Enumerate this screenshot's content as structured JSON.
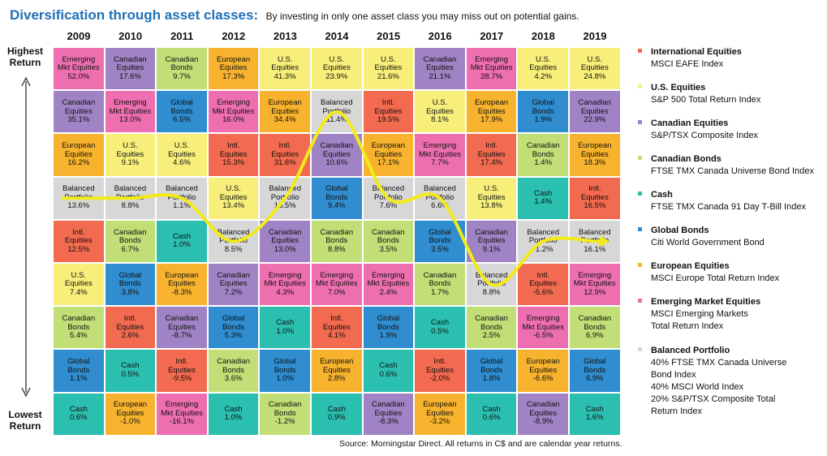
{
  "title": "Diversification through asset classes:",
  "subtitle": "By investing in only one asset class you may miss out on potential gains.",
  "y_top_label": [
    "Highest",
    "Return"
  ],
  "y_bottom_label": [
    "Lowest",
    "Return"
  ],
  "source": "Source: Morningstar Direct. All returns in C$ and are calendar year returns.",
  "colors": {
    "intl": "#f26a4f",
    "us": "#f7ef7a",
    "cdn_eq": "#9f83c4",
    "cdn_bonds": "#c2de76",
    "cash": "#2bbfb0",
    "global": "#2f8dd0",
    "eur": "#f7b32d",
    "em": "#ee6fb0",
    "bal": "#d7d7d7",
    "line": "#f3ea19"
  },
  "legend": [
    {
      "key": "intl",
      "name": "International Equities",
      "lines": [
        "MSCI EAFE Index"
      ]
    },
    {
      "key": "us",
      "name": "U.S. Equities",
      "lines": [
        "S&P 500 Total Return Index"
      ]
    },
    {
      "key": "cdn_eq",
      "name": "Canadian Equities",
      "lines": [
        "S&P/TSX Composite Index"
      ]
    },
    {
      "key": "cdn_bonds",
      "name": "Canadian Bonds",
      "lines": [
        "FTSE TMX Canada Universe Bond Index"
      ]
    },
    {
      "key": "cash",
      "name": "Cash",
      "lines": [
        "FTSE TMX Canada 91 Day T-Bill Index"
      ]
    },
    {
      "key": "global",
      "name": "Global Bonds",
      "lines": [
        "Citi World Government Bond"
      ]
    },
    {
      "key": "eur",
      "name": "European Equities",
      "lines": [
        "MSCI Europe Total Return Index"
      ]
    },
    {
      "key": "em",
      "name": "Emerging Market Equities",
      "lines": [
        "MSCI Emerging Markets",
        "Total Return Index"
      ]
    },
    {
      "key": "bal",
      "name": "Balanced Portfolio",
      "lines": [
        "40% FTSE TMX Canada Universe",
        "Bond Index",
        "40% MSCI World Index",
        "20% S&P/TSX Composite Total",
        "Return Index"
      ]
    }
  ],
  "chart_data": {
    "type": "table",
    "title": "Diversification through asset classes:",
    "years": [
      "2009",
      "2010",
      "2011",
      "2012",
      "2013",
      "2014",
      "2015",
      "2016",
      "2017",
      "2018",
      "2019"
    ],
    "cell_names": {
      "intl": [
        "Intl.",
        "Equities"
      ],
      "us": [
        "U.S.",
        "Equities"
      ],
      "cdn_eq": [
        "Canadian",
        "Equities"
      ],
      "cdn_bonds": [
        "Canadian",
        "Bonds"
      ],
      "cash": [
        "Cash"
      ],
      "global": [
        "Global",
        "Bonds"
      ],
      "eur": [
        "European",
        "Equities"
      ],
      "em": [
        "Emerging",
        "Mkt Equities"
      ],
      "bal": [
        "Balanced",
        "Portfolio"
      ]
    },
    "highlight_series": "bal",
    "columns": [
      [
        [
          "em",
          "52.0%"
        ],
        [
          "cdn_eq",
          "35.1%"
        ],
        [
          "eur",
          "16.2%"
        ],
        [
          "bal",
          "13.6%"
        ],
        [
          "intl",
          "12.5%"
        ],
        [
          "us",
          "7.4%"
        ],
        [
          "cdn_bonds",
          "5.4%"
        ],
        [
          "global",
          "1.1%"
        ],
        [
          "cash",
          "0.6%"
        ]
      ],
      [
        [
          "cdn_eq",
          "17.6%"
        ],
        [
          "em",
          "13.0%"
        ],
        [
          "us",
          "9.1%"
        ],
        [
          "bal",
          "8.8%"
        ],
        [
          "cdn_bonds",
          "6.7%"
        ],
        [
          "global",
          "3.8%"
        ],
        [
          "intl",
          "2.6%"
        ],
        [
          "cash",
          "0.5%"
        ],
        [
          "eur",
          "-1.0%"
        ]
      ],
      [
        [
          "cdn_bonds",
          "9.7%"
        ],
        [
          "global",
          "6.5%"
        ],
        [
          "us",
          "4.6%"
        ],
        [
          "bal",
          "1.1%"
        ],
        [
          "cash",
          "1.0%"
        ],
        [
          "eur",
          "-8.3%"
        ],
        [
          "cdn_eq",
          "-8.7%"
        ],
        [
          "intl",
          "-9.5%"
        ],
        [
          "em",
          "-16.1%"
        ]
      ],
      [
        [
          "eur",
          "17.3%"
        ],
        [
          "em",
          "16.0%"
        ],
        [
          "intl",
          "15.3%"
        ],
        [
          "us",
          "13.4%"
        ],
        [
          "bal",
          "8.5%"
        ],
        [
          "cdn_eq",
          "7.2%"
        ],
        [
          "global",
          "5.3%"
        ],
        [
          "cdn_bonds",
          "3.6%"
        ],
        [
          "cash",
          "1.0%"
        ]
      ],
      [
        [
          "us",
          "41.3%"
        ],
        [
          "eur",
          "34.4%"
        ],
        [
          "intl",
          "31.6%"
        ],
        [
          "bal",
          "16.5%"
        ],
        [
          "cdn_eq",
          "13.0%"
        ],
        [
          "em",
          "4.3%"
        ],
        [
          "cash",
          "1.0%"
        ],
        [
          "global",
          "1.0%"
        ],
        [
          "cdn_bonds",
          "-1.2%"
        ]
      ],
      [
        [
          "us",
          "23.9%"
        ],
        [
          "bal",
          "11.4%"
        ],
        [
          "cdn_eq",
          "10.6%"
        ],
        [
          "global",
          "9.4%"
        ],
        [
          "cdn_bonds",
          "8.8%"
        ],
        [
          "em",
          "7.0%"
        ],
        [
          "intl",
          "4.1%"
        ],
        [
          "eur",
          "2.8%"
        ],
        [
          "cash",
          "0.9%"
        ]
      ],
      [
        [
          "us",
          "21.6%"
        ],
        [
          "intl",
          "19.5%"
        ],
        [
          "eur",
          "17.1%"
        ],
        [
          "bal",
          "7.6%"
        ],
        [
          "cdn_bonds",
          "3.5%"
        ],
        [
          "em",
          "2.4%"
        ],
        [
          "global",
          "1.9%"
        ],
        [
          "cash",
          "0.6%"
        ],
        [
          "cdn_eq",
          "-8.3%"
        ]
      ],
      [
        [
          "cdn_eq",
          "21.1%"
        ],
        [
          "us",
          "8.1%"
        ],
        [
          "em",
          "7.7%"
        ],
        [
          "bal",
          "6.6%"
        ],
        [
          "global",
          "3.5%"
        ],
        [
          "cdn_bonds",
          "1.7%"
        ],
        [
          "cash",
          "0.5%"
        ],
        [
          "intl",
          "-2.0%"
        ],
        [
          "eur",
          "-3.2%"
        ]
      ],
      [
        [
          "em",
          "28.7%"
        ],
        [
          "eur",
          "17.9%"
        ],
        [
          "intl",
          "17.4%"
        ],
        [
          "us",
          "13.8%"
        ],
        [
          "cdn_eq",
          "9.1%"
        ],
        [
          "bal",
          "8.8%"
        ],
        [
          "cdn_bonds",
          "2.5%"
        ],
        [
          "global",
          "1.8%"
        ],
        [
          "cash",
          "0.6%"
        ]
      ],
      [
        [
          "us",
          "4.2%"
        ],
        [
          "global",
          "1.9%"
        ],
        [
          "cdn_bonds",
          "1.4%"
        ],
        [
          "cash",
          "1.4%"
        ],
        [
          "bal",
          "-1.2%"
        ],
        [
          "intl",
          "-5.6%"
        ],
        [
          "em",
          "-6.5%"
        ],
        [
          "eur",
          "-6.6%"
        ],
        [
          "cdn_eq",
          "-8.9%"
        ]
      ],
      [
        [
          "us",
          "24.8%"
        ],
        [
          "cdn_eq",
          "22.9%"
        ],
        [
          "eur",
          "18.3%"
        ],
        [
          "intl",
          "16.5%"
        ],
        [
          "bal",
          "16.1%"
        ],
        [
          "em",
          "12.9%"
        ],
        [
          "cdn_bonds",
          "6.9%"
        ],
        [
          "global",
          "6.9%"
        ],
        [
          "cash",
          "1.6%"
        ]
      ]
    ]
  }
}
